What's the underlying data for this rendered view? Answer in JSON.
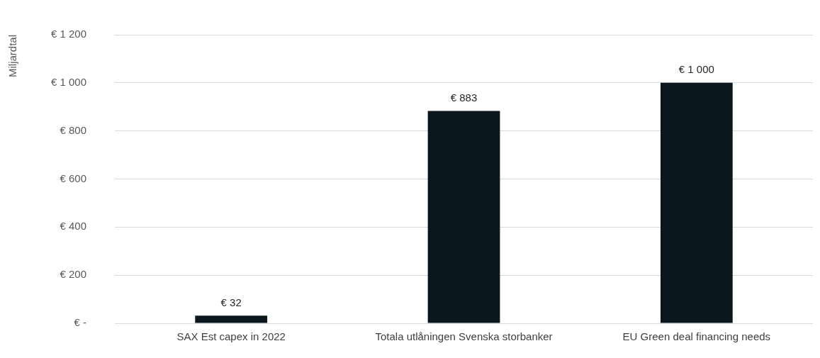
{
  "chart_data": {
    "type": "bar",
    "ylabel": "Miljardtal",
    "categories": [
      "SAX Est capex in 2022",
      "Totala utlåningen Svenska storbanker",
      "EU Green deal financing needs"
    ],
    "values": [
      32,
      883,
      1000
    ],
    "color": "#0b171c",
    "value_labels": [
      "€ 32",
      "€ 883",
      "€ 1 000"
    ],
    "ylim": [
      0,
      1200
    ],
    "yticks": [
      {
        "value": 0,
        "label": "€ -"
      },
      {
        "value": 200,
        "label": "€ 200"
      },
      {
        "value": 400,
        "label": "€ 400"
      },
      {
        "value": 600,
        "label": "€ 600"
      },
      {
        "value": 800,
        "label": "€ 800"
      },
      {
        "value": 1000,
        "label": "€ 1 000"
      },
      {
        "value": 1200,
        "label": "€ 1 200"
      }
    ],
    "grid": "y",
    "legend": false
  }
}
